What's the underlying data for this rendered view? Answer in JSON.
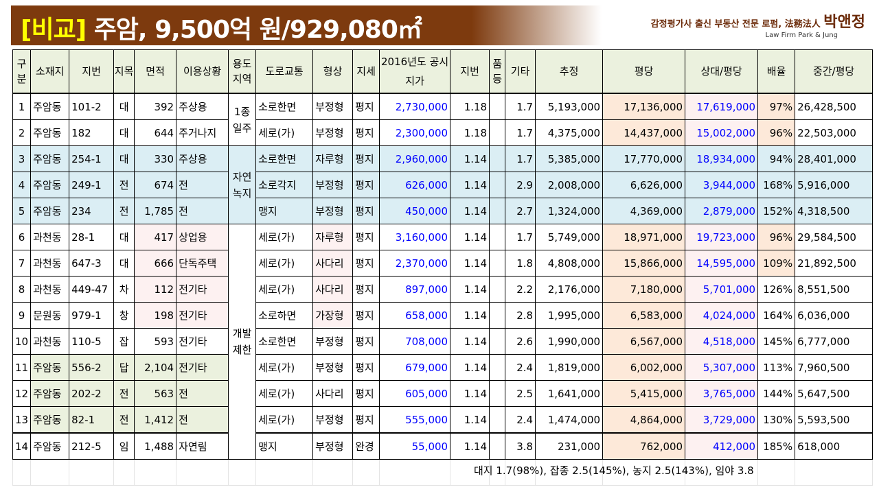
{
  "header": {
    "title_highlight": "[비교]",
    "title_rest": " 주암, 9,500억 원/929,080㎡",
    "firm_line": "감정평가사 출신 부동산 전문 로펌, 法務法人 ",
    "firm_name": "박앤정",
    "firm_en": "Law Firm  Park & Jung"
  },
  "columns": [
    "구분",
    "소재지",
    "지번",
    "지목",
    "면적",
    "이용상황",
    "용도지역",
    "도로교통",
    "형상",
    "지세",
    "2016년도 공시지가",
    "지번",
    "품등",
    "기타",
    "추정",
    "평당",
    "상대/평당",
    "배율",
    "중간/평당"
  ],
  "zones": [
    {
      "label": "1종 일주",
      "start": 0,
      "span": 2
    },
    {
      "label": "자연 녹지",
      "start": 2,
      "span": 3
    },
    {
      "label": "개발 제한",
      "start": 5,
      "span": 9
    }
  ],
  "rows": [
    [
      "1",
      "주암동",
      "101-2",
      "대",
      "392",
      "주상용",
      "소로한면",
      "부정형",
      "평지",
      "2,730,000",
      "1.18",
      "",
      "1.7",
      "5,193,000",
      "17,136,000",
      "17,619,000",
      "97%",
      "26,428,500"
    ],
    [
      "2",
      "주암동",
      "182",
      "대",
      "644",
      "주거나지",
      "세로(가)",
      "부정형",
      "평지",
      "2,300,000",
      "1.18",
      "",
      "1.7",
      "4,375,000",
      "14,437,000",
      "15,002,000",
      "96%",
      "22,503,000"
    ],
    [
      "3",
      "주암동",
      "254-1",
      "대",
      "330",
      "주상용",
      "소로한면",
      "자루형",
      "평지",
      "2,960,000",
      "1.14",
      "",
      "1.7",
      "5,385,000",
      "17,770,000",
      "18,934,000",
      "94%",
      "28,401,000"
    ],
    [
      "4",
      "주암동",
      "249-1",
      "전",
      "674",
      "전",
      "소로각지",
      "부정형",
      "평지",
      "626,000",
      "1.14",
      "",
      "2.9",
      "2,008,000",
      "6,626,000",
      "3,944,000",
      "168%",
      "5,916,000"
    ],
    [
      "5",
      "주암동",
      "234",
      "전",
      "1,785",
      "전",
      "맹지",
      "부정형",
      "평지",
      "450,000",
      "1.14",
      "",
      "2.7",
      "1,324,000",
      "4,369,000",
      "2,879,000",
      "152%",
      "4,318,500"
    ],
    [
      "6",
      "과천동",
      "28-1",
      "대",
      "417",
      "상업용",
      "세로(가)",
      "자루형",
      "평지",
      "3,160,000",
      "1.14",
      "",
      "1.7",
      "5,749,000",
      "18,971,000",
      "19,723,000",
      "96%",
      "29,584,500"
    ],
    [
      "7",
      "과천동",
      "647-3",
      "대",
      "666",
      "단독주택",
      "세로(가)",
      "사다리",
      "평지",
      "2,370,000",
      "1.14",
      "",
      "1.8",
      "4,808,000",
      "15,866,000",
      "14,595,000",
      "109%",
      "21,892,500"
    ],
    [
      "8",
      "과천동",
      "449-47",
      "차",
      "112",
      "전기타",
      "세로(가)",
      "사다리",
      "평지",
      "897,000",
      "1.14",
      "",
      "2.2",
      "2,176,000",
      "7,180,000",
      "5,701,000",
      "126%",
      "8,551,500"
    ],
    [
      "9",
      "문원동",
      "979-1",
      "창",
      "198",
      "전기타",
      "소로하면",
      "가장형",
      "평지",
      "658,000",
      "1.14",
      "",
      "2.8",
      "1,995,000",
      "6,583,000",
      "4,024,000",
      "164%",
      "6,036,000"
    ],
    [
      "10",
      "과천동",
      "110-5",
      "잡",
      "593",
      "전기타",
      "소로한면",
      "부정형",
      "평지",
      "708,000",
      "1.14",
      "",
      "2.6",
      "1,990,000",
      "6,567,000",
      "4,518,000",
      "145%",
      "6,777,000"
    ],
    [
      "11",
      "주암동",
      "556-2",
      "답",
      "2,104",
      "전기타",
      "세로(가)",
      "부정형",
      "평지",
      "679,000",
      "1.14",
      "",
      "2.4",
      "1,819,000",
      "6,002,000",
      "5,307,000",
      "113%",
      "7,960,500"
    ],
    [
      "12",
      "주암동",
      "202-2",
      "전",
      "563",
      "전",
      "세로(가)",
      "사다리",
      "평지",
      "605,000",
      "1.14",
      "",
      "2.5",
      "1,641,000",
      "5,415,000",
      "3,765,000",
      "144%",
      "5,647,500"
    ],
    [
      "13",
      "주암동",
      "82-1",
      "전",
      "1,412",
      "전",
      "세로(가)",
      "부정형",
      "평지",
      "555,000",
      "1.14",
      "",
      "2.4",
      "1,474,000",
      "4,864,000",
      "3,729,000",
      "130%",
      "5,593,500"
    ],
    [
      "14",
      "주암동",
      "212-5",
      "임",
      "1,488",
      "자연림",
      "맹지",
      "부정형",
      "완경",
      "55,000",
      "1.14",
      "",
      "3.8",
      "231,000",
      "762,000",
      "412,000",
      "185%",
      "618,000"
    ]
  ],
  "footnote": "대지 1.7(98%), 잡종 2.5(145%), 농지 2.5(143%), 임야 3.8"
}
